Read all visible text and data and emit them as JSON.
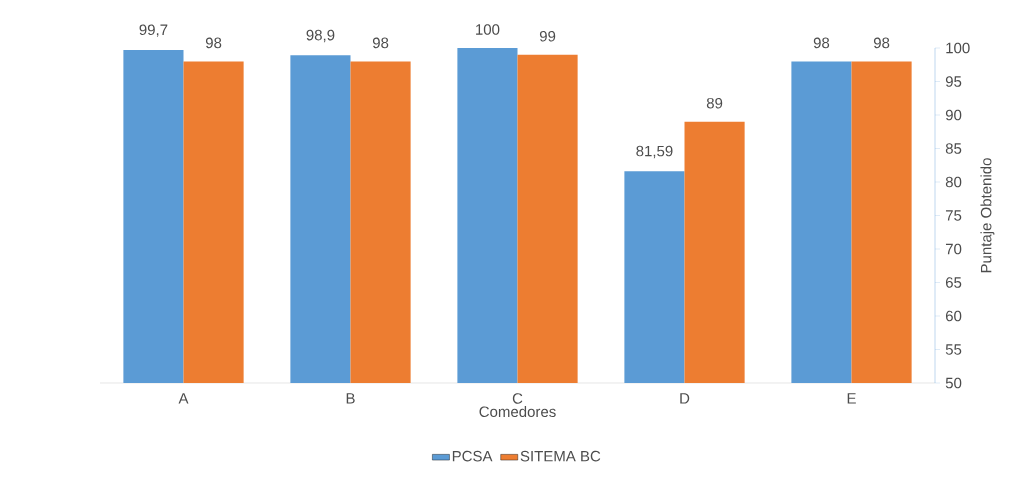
{
  "chart_data": {
    "type": "bar",
    "xlabel": "Comedores",
    "ylabel": "Puntaje Obtenido",
    "categories": [
      "A",
      "B",
      "C",
      "D",
      "E"
    ],
    "series": [
      {
        "name": "PCSA",
        "color": "#5b9bd5",
        "values": [
          99.7,
          98.9,
          100,
          81.59,
          98
        ],
        "value_labels": [
          "99,7",
          "98,9",
          "100",
          "81,59",
          "98"
        ]
      },
      {
        "name": "SITEMA BC",
        "color": "#ed7d31",
        "values": [
          98,
          98,
          99,
          89,
          98
        ],
        "value_labels": [
          "98",
          "98",
          "99",
          "89",
          "98"
        ]
      }
    ],
    "ylim": [
      50,
      100
    ],
    "yticks": [
      50,
      55,
      60,
      65,
      70,
      75,
      80,
      85,
      90,
      95,
      100
    ],
    "legend": "bottom"
  }
}
